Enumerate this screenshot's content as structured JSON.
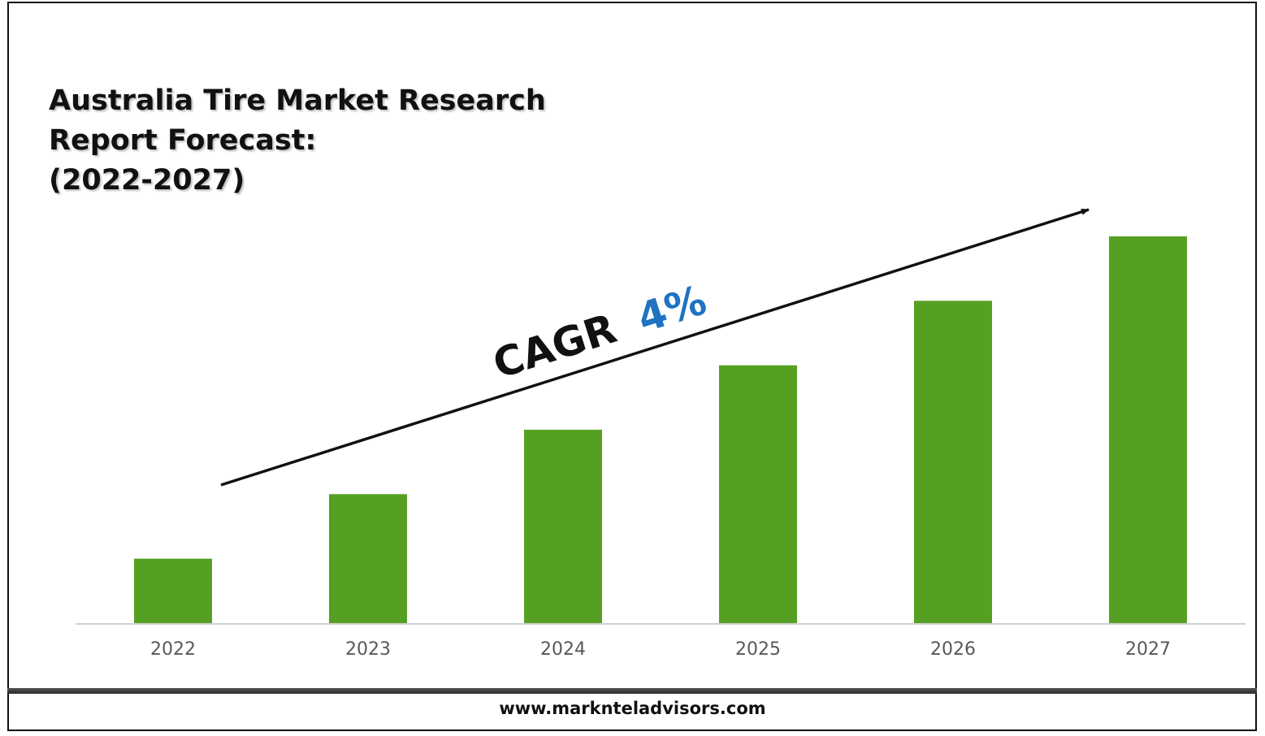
{
  "chart_data": {
    "type": "bar",
    "title_lines": [
      "Australia Tire Market Research",
      "Report Forecast:",
      "(2022-2027)"
    ],
    "categories": [
      "2022",
      "2023",
      "2024",
      "2025",
      "2026",
      "2027"
    ],
    "values": [
      1.0,
      2.0,
      3.0,
      4.0,
      5.0,
      6.0
    ],
    "ylim": [
      0,
      6.0
    ],
    "bar_color": "#55a022",
    "annotation": {
      "label": "CAGR",
      "value": "4%",
      "label_color": "#111111",
      "value_color": "#1f73c2"
    },
    "grid": false,
    "legend": "none"
  },
  "footer": {
    "url": "www.marknteladvisors.com"
  }
}
